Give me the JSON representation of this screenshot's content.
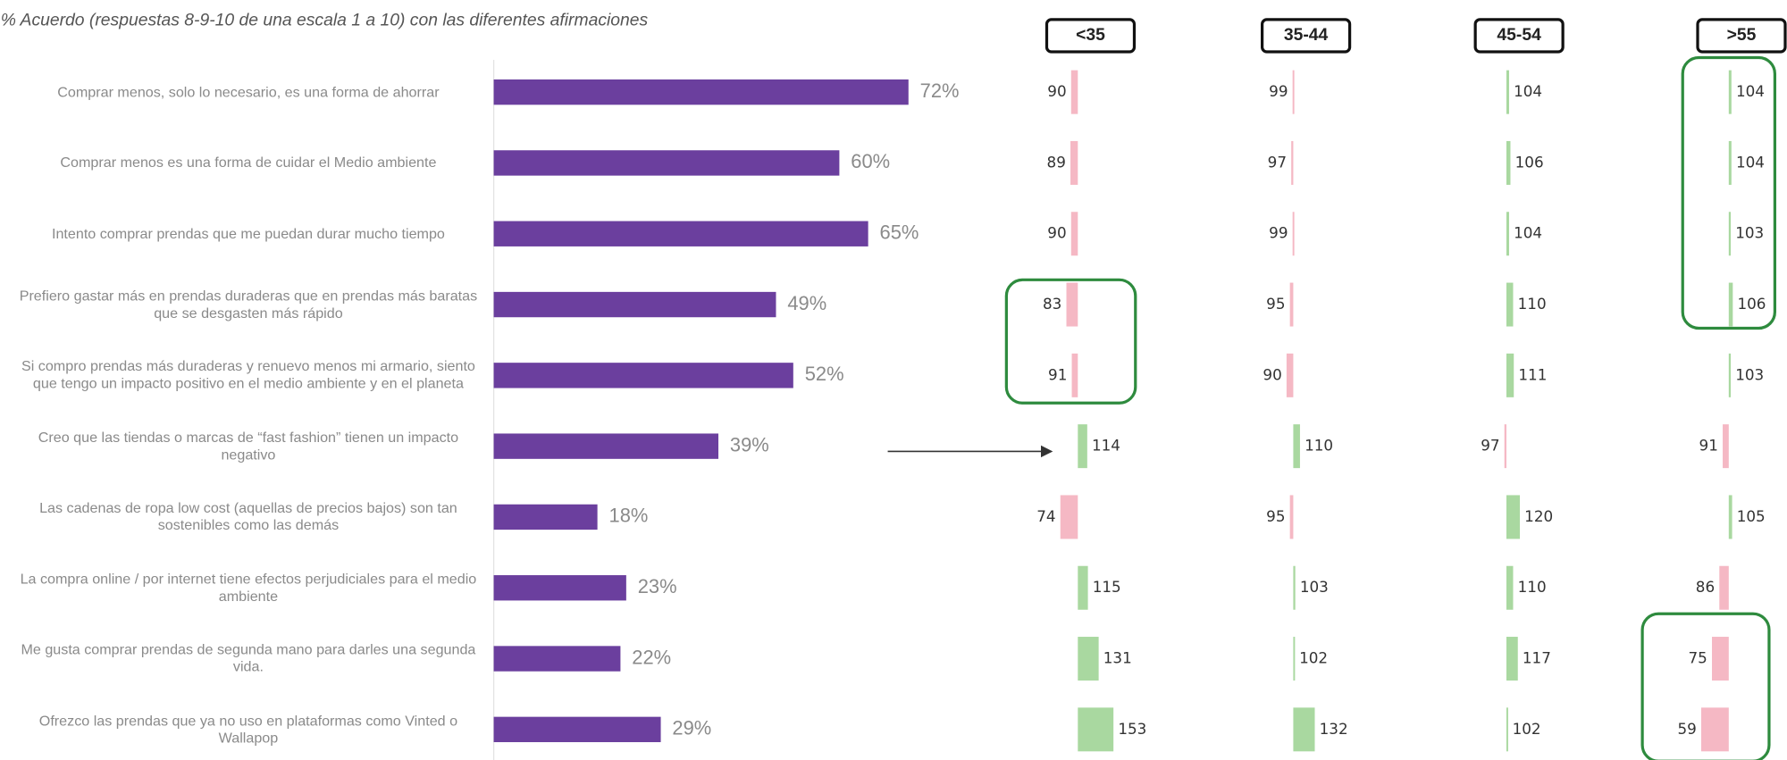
{
  "chart_data": {
    "type": "bar",
    "title": "% Acuerdo (respuestas 8-9-10 de una escala 1 a 10) con las diferentes afirmaciones",
    "categories": [
      "Comprar menos, solo lo necesario, es una forma de ahorrar",
      "Comprar menos es una forma de cuidar el Medio ambiente",
      "Intento comprar prendas que me puedan durar mucho tiempo",
      "Prefiero gastar más en prendas duraderas que en prendas más baratas que se desgasten más rápido",
      "Si compro prendas más duraderas y renuevo menos mi armario, siento que tengo un impacto positivo en el medio ambiente y en el planeta",
      "Creo que las tiendas o marcas de “fast fashion” tienen un impacto negativo",
      "Las cadenas de ropa low cost (aquellas de precios bajos) son tan sostenibles como las demás",
      "La compra online / por internet tiene efectos perjudiciales para el medio ambiente",
      "Me gusta comprar prendas de segunda mano para darles una segunda vida.",
      "Ofrezco las prendas que ya no uso en plataformas como Vinted o Wallapop"
    ],
    "values": [
      72,
      60,
      65,
      49,
      52,
      39,
      18,
      23,
      22,
      29
    ],
    "value_labels": [
      "72%",
      "60%",
      "65%",
      "49%",
      "52%",
      "39%",
      "18%",
      "23%",
      "22%",
      "29%"
    ],
    "color": "#6b3f9e",
    "xlim": [
      0,
      100
    ],
    "index_xlim": [
      40,
      160
    ],
    "index_colors": {
      "above": "#a9d8a0",
      "below": "#f5b8c4"
    },
    "index_series": [
      {
        "name": "<35",
        "values": [
          90,
          89,
          90,
          83,
          91,
          114,
          74,
          115,
          131,
          153
        ]
      },
      {
        "name": "35-44",
        "values": [
          99,
          97,
          99,
          95,
          90,
          110,
          95,
          103,
          102,
          132
        ]
      },
      {
        "name": "45-54",
        "values": [
          104,
          106,
          104,
          110,
          111,
          97,
          120,
          110,
          117,
          102
        ]
      },
      {
        "name": ">55",
        "values": [
          104,
          104,
          103,
          106,
          103,
          91,
          105,
          86,
          75,
          59
        ]
      }
    ]
  }
}
